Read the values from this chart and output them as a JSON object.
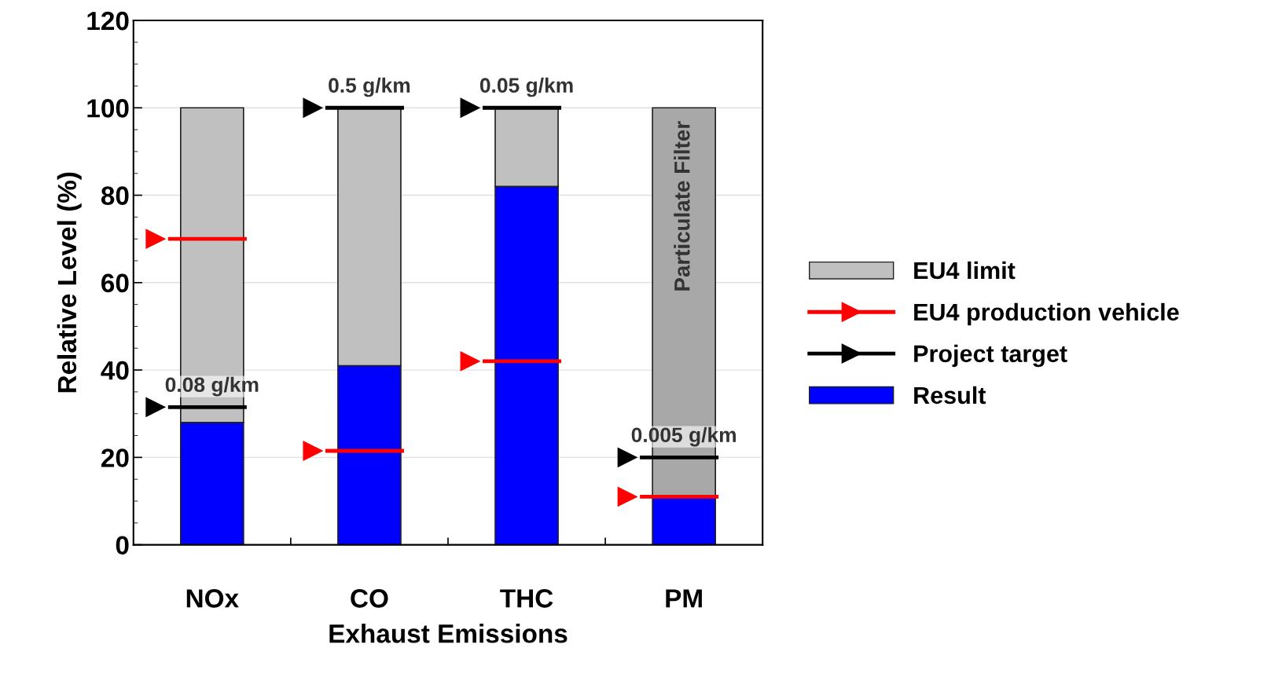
{
  "chart_data": {
    "type": "bar",
    "stacked": true,
    "xlabel": "Exhaust Emissions",
    "ylabel": "Relative Level (%)",
    "categories": [
      "NOx",
      "CO",
      "THC",
      "PM"
    ],
    "ylim": [
      0,
      120
    ],
    "yticks": [
      0,
      20,
      40,
      60,
      80,
      100,
      120
    ],
    "grid": "y",
    "legend": "right",
    "series": [
      {
        "name": "Result",
        "color": "#0000ff",
        "values": [
          28,
          41,
          82,
          11
        ]
      },
      {
        "name": "EU4 limit",
        "color": "#c0c0c0",
        "colors": [
          "#c0c0c0",
          "#c0c0c0",
          "#c0c0c0",
          "#a8a8a8"
        ],
        "values": [
          72,
          59,
          18,
          89
        ]
      },
      {
        "name": "EU4 production vehicle",
        "type": "scatter",
        "marker": "triangle",
        "color": "#ff0000",
        "values": [
          70,
          21.5,
          42,
          11
        ]
      },
      {
        "name": "Project target",
        "type": "scatter",
        "marker": "triangle",
        "color": "#000000",
        "values": [
          31.5,
          100,
          100,
          20
        ]
      }
    ],
    "annotations": [
      "0.08 g/km",
      "0.5 g/km",
      "0.05 g/km",
      "0.005 g/km",
      "Particulate Filter"
    ]
  }
}
